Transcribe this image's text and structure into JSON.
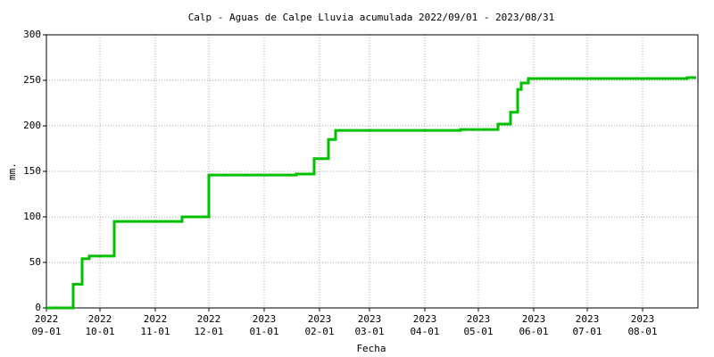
{
  "chart_data": {
    "type": "step-line",
    "title": "Calp - Aguas de Calpe Lluvia acumulada 2022/09/01 - 2023/08/31",
    "x_label": "Fecha",
    "y_label": "mm.",
    "x": [
      "2022-09-01",
      "2022-09-16",
      "2022-09-21",
      "2022-09-25",
      "2022-10-09",
      "2022-11-16",
      "2022-12-01",
      "2023-01-19",
      "2023-01-29",
      "2023-02-06",
      "2023-02-10",
      "2023-04-21",
      "2023-05-12",
      "2023-05-19",
      "2023-05-23",
      "2023-05-25",
      "2023-05-29",
      "2023-08-26",
      "2023-08-31"
    ],
    "series": [
      {
        "name": "Lluvia acumulada",
        "color": "#00c000",
        "values": [
          0,
          26,
          54,
          57,
          95,
          100,
          146,
          147,
          164,
          185,
          195,
          196,
          202,
          215,
          240,
          247,
          252,
          253,
          253
        ]
      }
    ],
    "xlim": [
      "2022-09-01",
      "2023-09-01"
    ],
    "xticks": [
      {
        "value": "2022-09-01",
        "label": [
          "2022",
          "09-01"
        ]
      },
      {
        "value": "2022-10-01",
        "label": [
          "2022",
          "10-01"
        ]
      },
      {
        "value": "2022-11-01",
        "label": [
          "2022",
          "11-01"
        ]
      },
      {
        "value": "2022-12-01",
        "label": [
          "2022",
          "12-01"
        ]
      },
      {
        "value": "2023-01-01",
        "label": [
          "2023",
          "01-01"
        ]
      },
      {
        "value": "2023-02-01",
        "label": [
          "2023",
          "02-01"
        ]
      },
      {
        "value": "2023-03-01",
        "label": [
          "2023",
          "03-01"
        ]
      },
      {
        "value": "2023-04-01",
        "label": [
          "2023",
          "04-01"
        ]
      },
      {
        "value": "2023-05-01",
        "label": [
          "2023",
          "05-01"
        ]
      },
      {
        "value": "2023-06-01",
        "label": [
          "2023",
          "06-01"
        ]
      },
      {
        "value": "2023-07-01",
        "label": [
          "2023",
          "07-01"
        ]
      },
      {
        "value": "2023-08-01",
        "label": [
          "2023",
          "08-01"
        ]
      }
    ],
    "ylim": [
      0,
      300
    ],
    "yticks": [
      0,
      50,
      100,
      150,
      200,
      250,
      300
    ],
    "grid": true
  }
}
